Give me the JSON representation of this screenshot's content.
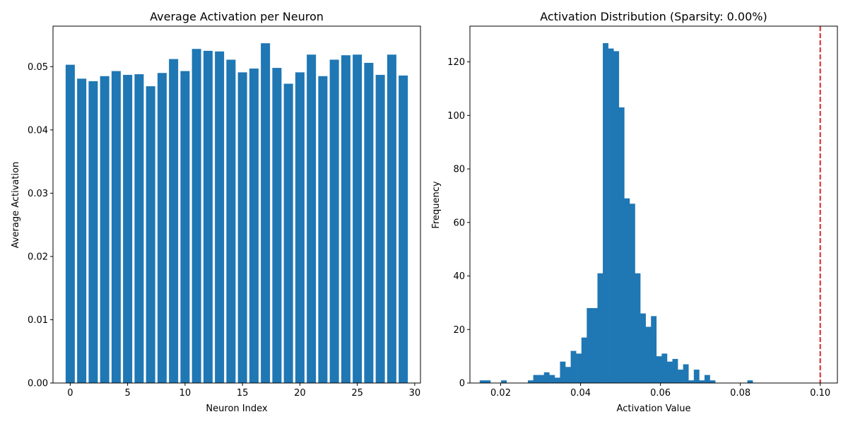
{
  "chart_data": [
    {
      "type": "bar",
      "title": "Average Activation per Neuron",
      "xlabel": "Neuron Index",
      "ylabel": "Average Activation",
      "x": [
        0,
        1,
        2,
        3,
        4,
        5,
        6,
        7,
        8,
        9,
        10,
        11,
        12,
        13,
        14,
        15,
        16,
        17,
        18,
        19,
        20,
        21,
        22,
        23,
        24,
        25,
        26,
        27,
        28,
        29
      ],
      "values": [
        0.0503,
        0.0481,
        0.0477,
        0.0485,
        0.0493,
        0.0487,
        0.0488,
        0.0469,
        0.049,
        0.0512,
        0.0493,
        0.0528,
        0.0525,
        0.0524,
        0.0511,
        0.0491,
        0.0497,
        0.0537,
        0.0498,
        0.0473,
        0.0491,
        0.0519,
        0.0485,
        0.0511,
        0.0518,
        0.0519,
        0.0506,
        0.0487,
        0.0519,
        0.0486
      ],
      "xlim": [
        -1.5,
        30.5
      ],
      "ylim": [
        0,
        0.0564
      ],
      "xticks": [
        0,
        5,
        10,
        15,
        20,
        25,
        30
      ],
      "xtick_labels": [
        "0",
        "5",
        "10",
        "15",
        "20",
        "25",
        "30"
      ],
      "yticks": [
        0,
        0.01,
        0.02,
        0.03,
        0.04,
        0.05
      ],
      "ytick_labels": [
        "0.00",
        "0.01",
        "0.02",
        "0.03",
        "0.04",
        "0.05"
      ],
      "bar_width": 0.8,
      "color": "#1f77b4",
      "grid": false
    },
    {
      "type": "bar",
      "subtype": "histogram",
      "title": "Activation Distribution (Sparsity: 0.00%)",
      "xlabel": "Activation Value",
      "ylabel": "Frequency",
      "bin_width": 0.00134,
      "bin_starts": [
        0.01475,
        0.01609,
        0.01743,
        0.01877,
        0.02011,
        0.02145,
        0.02279,
        0.02413,
        0.02547,
        0.02681,
        0.02815,
        0.02949,
        0.03083,
        0.03217,
        0.03351,
        0.03485,
        0.03619,
        0.03753,
        0.03887,
        0.04021,
        0.04155,
        0.04289,
        0.04423,
        0.04557,
        0.04691,
        0.04825,
        0.04959,
        0.05093,
        0.05227,
        0.05361,
        0.05495,
        0.05629,
        0.05763,
        0.05897,
        0.06031,
        0.06165,
        0.06299,
        0.06433,
        0.06567,
        0.06701,
        0.06835,
        0.06969,
        0.07103,
        0.07237,
        0.07371,
        0.07505,
        0.07639,
        0.07773,
        0.07907,
        0.08041,
        0.08175
      ],
      "counts": [
        1,
        1,
        0,
        0,
        1,
        0,
        0,
        0,
        0,
        1,
        3,
        3,
        4,
        3,
        2,
        8,
        6,
        12,
        11,
        17,
        28,
        28,
        41,
        127,
        125,
        124,
        103,
        69,
        67,
        41,
        26,
        21,
        25,
        10,
        11,
        8,
        9,
        5,
        7,
        1,
        5,
        1,
        3,
        1,
        0,
        0,
        0,
        0,
        0,
        0,
        1
      ],
      "xlim": [
        0.0123,
        0.1043
      ],
      "ylim": [
        0,
        133.35
      ],
      "xticks": [
        0.02,
        0.04,
        0.06,
        0.08,
        0.1
      ],
      "xtick_labels": [
        "0.02",
        "0.04",
        "0.06",
        "0.08",
        "0.10"
      ],
      "yticks": [
        0,
        20,
        40,
        60,
        80,
        100,
        120
      ],
      "ytick_labels": [
        "0",
        "20",
        "40",
        "60",
        "80",
        "100",
        "120"
      ],
      "color": "#1f77b4",
      "threshold_line": {
        "x": 0.1,
        "color": "#d62728",
        "style": "dashed"
      },
      "grid": false
    }
  ]
}
